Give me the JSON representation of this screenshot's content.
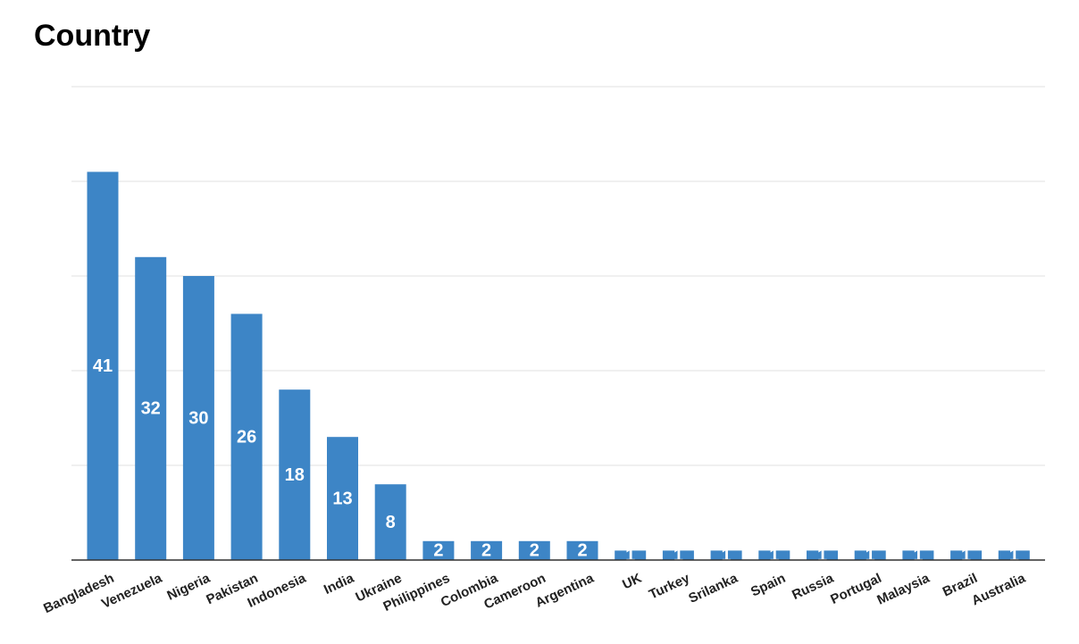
{
  "chart_data": {
    "type": "bar",
    "title": "Country",
    "categories": [
      "Bangladesh",
      "Venezuela",
      "Nigeria",
      "Pakistan",
      "Indonesia",
      "India",
      "Ukraine",
      "Philippines",
      "Colombia",
      "Cameroon",
      "Argentina",
      "UK",
      "Turkey",
      "Srilanka",
      "Spain",
      "Russia",
      "Portugal",
      "Malaysia",
      "Brazil",
      "Australia"
    ],
    "values": [
      41,
      32,
      30,
      26,
      18,
      13,
      8,
      2,
      2,
      2,
      2,
      1,
      1,
      1,
      1,
      1,
      1,
      1,
      1,
      1
    ],
    "color": "#3d85c6",
    "ylim": [
      0,
      50
    ],
    "yticks": [
      0,
      10,
      20,
      30,
      40,
      50
    ],
    "grid": true
  }
}
